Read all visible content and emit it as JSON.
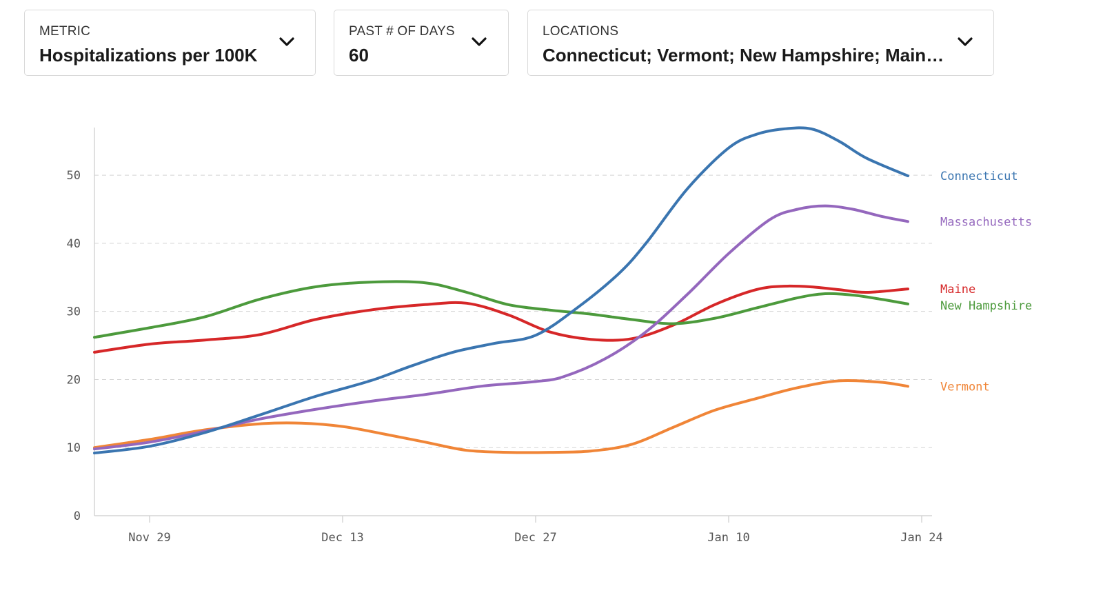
{
  "filters": {
    "metric": {
      "label": "METRIC",
      "value": "Hospitalizations per 100K"
    },
    "days": {
      "label": "PAST # OF DAYS",
      "value": "60"
    },
    "locations": {
      "label": "LOCATIONS",
      "value": "Connecticut; Vermont; New Hampshire; Maine; …"
    }
  },
  "chart_data": {
    "type": "line",
    "x_start": "2020-11-25",
    "x_end": "2021-01-23",
    "x_tick_labels": [
      "Nov 29",
      "Dec 13",
      "Dec 27",
      "Jan 10",
      "Jan 24"
    ],
    "x_tick_dates": [
      "2020-11-29",
      "2020-12-13",
      "2020-12-27",
      "2021-01-10",
      "2021-01-24"
    ],
    "y_ticks": [
      0,
      10,
      20,
      30,
      40,
      50
    ],
    "ylim": [
      0,
      57
    ],
    "grid": "horizontal-dashed",
    "legend": "inline-right",
    "series": [
      {
        "name": "Connecticut",
        "color": "#3a75b0",
        "points": [
          [
            "2020-11-25",
            9.2
          ],
          [
            "2020-11-29",
            10.2
          ],
          [
            "2020-12-03",
            12.2
          ],
          [
            "2020-12-07",
            14.8
          ],
          [
            "2020-12-11",
            17.5
          ],
          [
            "2020-12-15",
            19.8
          ],
          [
            "2020-12-18",
            22.0
          ],
          [
            "2020-12-21",
            24.0
          ],
          [
            "2020-12-24",
            25.3
          ],
          [
            "2020-12-27",
            26.5
          ],
          [
            "2020-12-30",
            30.5
          ],
          [
            "2021-01-02",
            35.5
          ],
          [
            "2021-01-04",
            40.0
          ],
          [
            "2021-01-07",
            48.0
          ],
          [
            "2021-01-10",
            54.0
          ],
          [
            "2021-01-12",
            56.0
          ],
          [
            "2021-01-14",
            56.8
          ],
          [
            "2021-01-16",
            56.8
          ],
          [
            "2021-01-18",
            55.0
          ],
          [
            "2021-01-20",
            52.5
          ],
          [
            "2021-01-23",
            49.9
          ]
        ]
      },
      {
        "name": "Massachusetts",
        "color": "#9467bd",
        "points": [
          [
            "2020-11-25",
            9.8
          ],
          [
            "2020-11-29",
            10.8
          ],
          [
            "2020-12-03",
            12.4
          ],
          [
            "2020-12-07",
            14.2
          ],
          [
            "2020-12-11",
            15.6
          ],
          [
            "2020-12-15",
            16.8
          ],
          [
            "2020-12-19",
            17.8
          ],
          [
            "2020-12-23",
            19.0
          ],
          [
            "2020-12-27",
            19.7
          ],
          [
            "2020-12-29",
            20.4
          ],
          [
            "2021-01-01",
            23.0
          ],
          [
            "2021-01-04",
            27.0
          ],
          [
            "2021-01-07",
            32.5
          ],
          [
            "2021-01-10",
            38.5
          ],
          [
            "2021-01-13",
            43.5
          ],
          [
            "2021-01-15",
            45.0
          ],
          [
            "2021-01-17",
            45.5
          ],
          [
            "2021-01-19",
            45.0
          ],
          [
            "2021-01-21",
            44.0
          ],
          [
            "2021-01-23",
            43.2
          ]
        ]
      },
      {
        "name": "Maine",
        "color": "#d62728",
        "points": [
          [
            "2020-11-25",
            24.0
          ],
          [
            "2020-11-29",
            25.2
          ],
          [
            "2020-12-03",
            25.8
          ],
          [
            "2020-12-07",
            26.6
          ],
          [
            "2020-12-11",
            28.8
          ],
          [
            "2020-12-15",
            30.2
          ],
          [
            "2020-12-19",
            31.0
          ],
          [
            "2020-12-22",
            31.2
          ],
          [
            "2020-12-25",
            29.5
          ],
          [
            "2020-12-28",
            27.0
          ],
          [
            "2020-12-31",
            25.9
          ],
          [
            "2021-01-03",
            26.0
          ],
          [
            "2021-01-06",
            28.0
          ],
          [
            "2021-01-09",
            31.0
          ],
          [
            "2021-01-12",
            33.2
          ],
          [
            "2021-01-14",
            33.7
          ],
          [
            "2021-01-16",
            33.6
          ],
          [
            "2021-01-18",
            33.2
          ],
          [
            "2021-01-20",
            32.8
          ],
          [
            "2021-01-23",
            33.3
          ]
        ]
      },
      {
        "name": "New Hampshire",
        "color": "#4c9a3c",
        "points": [
          [
            "2020-11-25",
            26.2
          ],
          [
            "2020-11-29",
            27.6
          ],
          [
            "2020-12-03",
            29.2
          ],
          [
            "2020-12-07",
            31.8
          ],
          [
            "2020-12-11",
            33.6
          ],
          [
            "2020-12-15",
            34.3
          ],
          [
            "2020-12-19",
            34.2
          ],
          [
            "2020-12-22",
            32.8
          ],
          [
            "2020-12-25",
            31.0
          ],
          [
            "2020-12-28",
            30.2
          ],
          [
            "2020-12-31",
            29.6
          ],
          [
            "2021-01-03",
            28.8
          ],
          [
            "2021-01-06",
            28.2
          ],
          [
            "2021-01-09",
            29.0
          ],
          [
            "2021-01-12",
            30.5
          ],
          [
            "2021-01-15",
            32.0
          ],
          [
            "2021-01-17",
            32.6
          ],
          [
            "2021-01-19",
            32.4
          ],
          [
            "2021-01-21",
            31.8
          ],
          [
            "2021-01-23",
            31.1
          ]
        ]
      },
      {
        "name": "Vermont",
        "color": "#f08537",
        "points": [
          [
            "2020-11-25",
            10.0
          ],
          [
            "2020-11-29",
            11.2
          ],
          [
            "2020-12-03",
            12.6
          ],
          [
            "2020-12-07",
            13.5
          ],
          [
            "2020-12-10",
            13.6
          ],
          [
            "2020-12-13",
            13.1
          ],
          [
            "2020-12-16",
            12.0
          ],
          [
            "2020-12-19",
            10.8
          ],
          [
            "2020-12-22",
            9.6
          ],
          [
            "2020-12-25",
            9.3
          ],
          [
            "2020-12-28",
            9.3
          ],
          [
            "2020-12-31",
            9.5
          ],
          [
            "2021-01-03",
            10.5
          ],
          [
            "2021-01-06",
            13.0
          ],
          [
            "2021-01-09",
            15.5
          ],
          [
            "2021-01-12",
            17.2
          ],
          [
            "2021-01-15",
            18.8
          ],
          [
            "2021-01-18",
            19.8
          ],
          [
            "2021-01-21",
            19.6
          ],
          [
            "2021-01-23",
            19.0
          ]
        ]
      }
    ]
  }
}
